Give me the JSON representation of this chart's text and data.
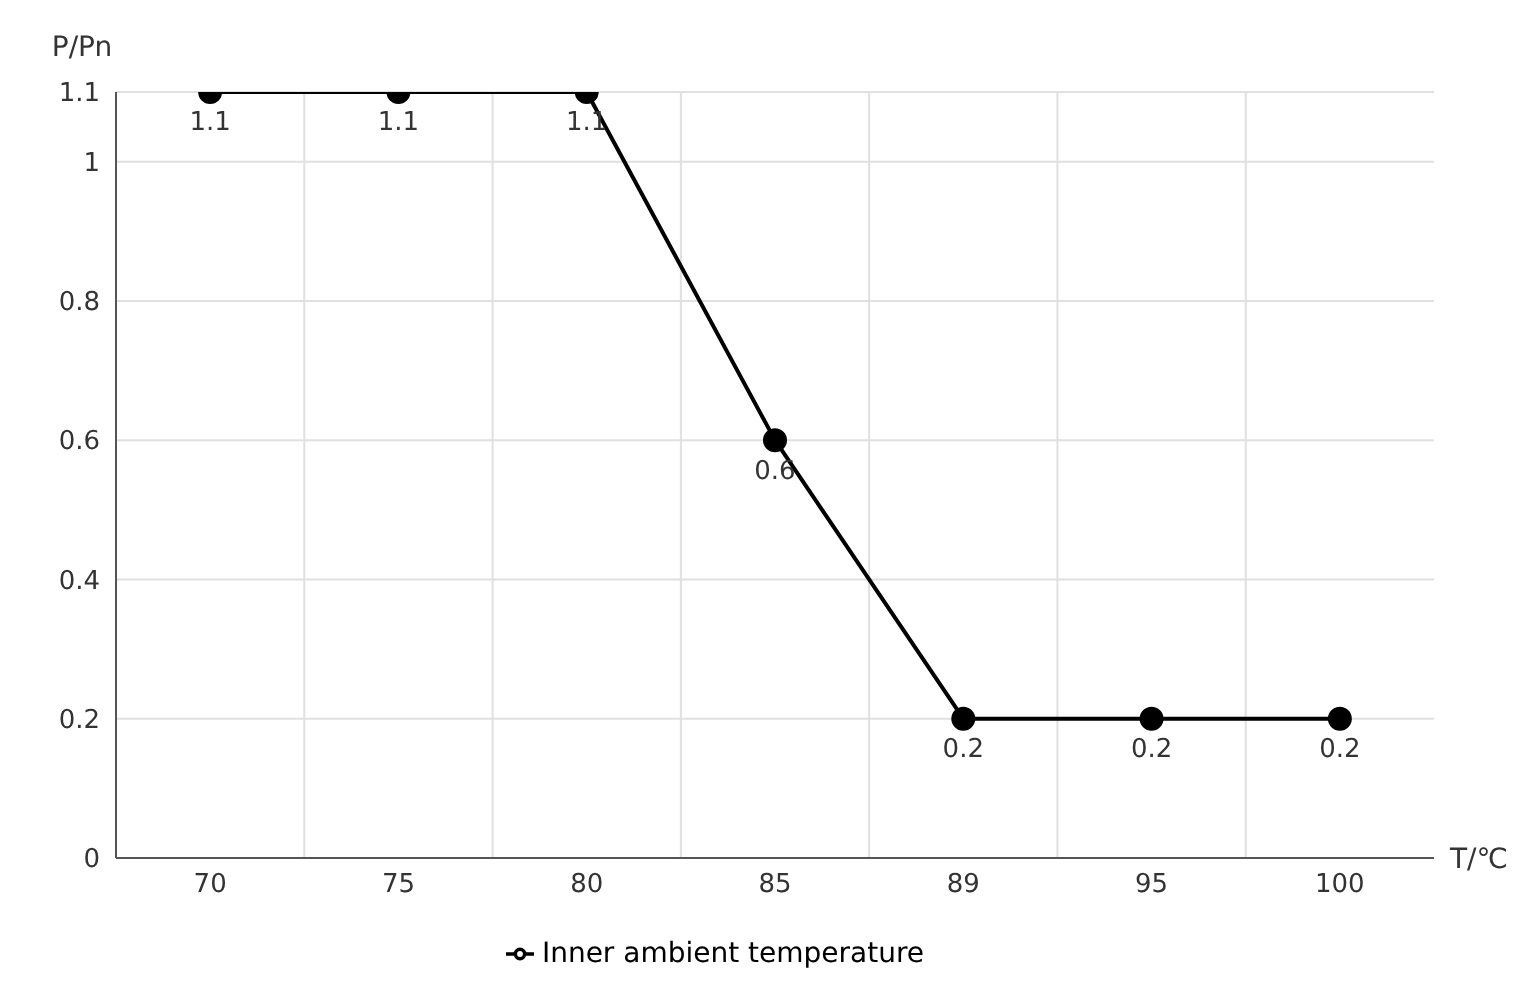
{
  "chart_data": {
    "type": "line",
    "xlabel": "T/℃",
    "ylabel": "P/Pn",
    "categories": [
      "70",
      "75",
      "80",
      "85",
      "89",
      "95",
      "100"
    ],
    "series": [
      {
        "name": "Inner ambient temperature",
        "color": "#000000",
        "values": [
          1.1,
          1.1,
          1.1,
          0.6,
          0.2,
          0.2,
          0.2
        ]
      }
    ],
    "ylim": [
      0,
      1.1
    ],
    "yticks": [
      0,
      0.2,
      0.4,
      0.6,
      0.8,
      1,
      1.1
    ],
    "grid": true,
    "legend": "bottom",
    "marker": "circle",
    "line_style": "solid",
    "data_labels": true
  }
}
